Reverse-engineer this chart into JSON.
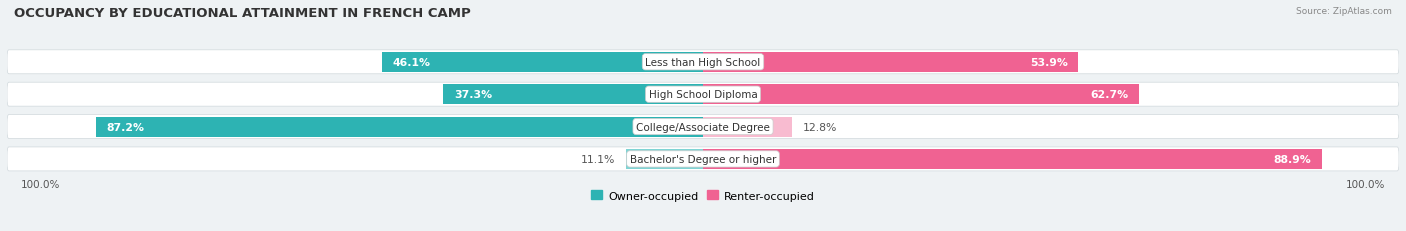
{
  "title": "OCCUPANCY BY EDUCATIONAL ATTAINMENT IN FRENCH CAMP",
  "source": "Source: ZipAtlas.com",
  "categories": [
    "Less than High School",
    "High School Diploma",
    "College/Associate Degree",
    "Bachelor's Degree or higher"
  ],
  "owner_pct": [
    46.1,
    37.3,
    87.2,
    11.1
  ],
  "renter_pct": [
    53.9,
    62.7,
    12.8,
    88.9
  ],
  "owner_color": "#2db3b3",
  "renter_color": "#f06292",
  "owner_color_light": "#80d4d4",
  "renter_color_light": "#f8bbd0",
  "bar_height": 0.62,
  "background_color": "#eef2f4",
  "bar_bg_color": "#ffffff",
  "row_bg_color": "#ffffff",
  "title_fontsize": 9.5,
  "label_fontsize": 7.8,
  "tick_fontsize": 7.5,
  "legend_fontsize": 8,
  "axis_label_left": "100.0%",
  "axis_label_right": "100.0%"
}
